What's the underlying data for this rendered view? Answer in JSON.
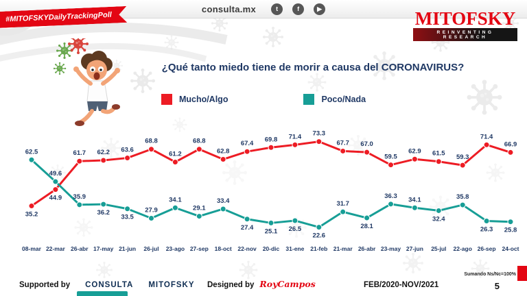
{
  "topbar": {
    "site": "consulta.mx",
    "social": [
      {
        "name": "twitter",
        "glyph": "t"
      },
      {
        "name": "facebook",
        "glyph": "f"
      },
      {
        "name": "youtube",
        "glyph": "▶"
      }
    ]
  },
  "ribbon": {
    "label": "#MITOFSKYDailyTrackingPoll"
  },
  "logo": {
    "name": "MITOFSKY",
    "tagline": "REINVENTING RESEARCH"
  },
  "title": {
    "question": "¿Qué tanto miedo tiene de morir a causa del ",
    "emphasis": "CORONAVIRUS?"
  },
  "chart_data": {
    "type": "line",
    "categories": [
      "08-mar",
      "22-mar",
      "26-abr",
      "17-may",
      "21-jun",
      "26-jul",
      "23-ago",
      "27-sep",
      "18-oct",
      "22-nov",
      "20-dic",
      "31-ene",
      "21-feb",
      "21-mar",
      "26-abr",
      "23-may",
      "27-jun",
      "25-jul",
      "22-ago",
      "26-sep",
      "24-oct"
    ],
    "series": [
      {
        "name": "Mucho/Algo",
        "color": "#ed1c24",
        "values": [
          35.2,
          44.9,
          61.7,
          62.2,
          63.6,
          68.8,
          61.2,
          68.8,
          62.8,
          67.4,
          69.8,
          71.4,
          73.3,
          67.7,
          67.0,
          59.5,
          62.9,
          61.5,
          59.3,
          71.4,
          66.9
        ],
        "label_side": [
          "below",
          "below",
          "above",
          "above",
          "above",
          "above",
          "above",
          "above",
          "above",
          "above",
          "above",
          "above",
          "above",
          "above",
          "above",
          "above",
          "above",
          "above",
          "above",
          "above",
          "above"
        ]
      },
      {
        "name": "Poco/Nada",
        "color": "#179e96",
        "values": [
          62.5,
          49.6,
          35.9,
          36.2,
          33.5,
          27.9,
          34.1,
          29.1,
          33.4,
          27.4,
          25.1,
          26.5,
          22.6,
          31.7,
          28.1,
          36.3,
          34.1,
          32.4,
          35.8,
          26.3,
          25.8
        ],
        "label_side": [
          "above",
          "above",
          "above",
          "below",
          "below",
          "above",
          "above",
          "above",
          "above",
          "below",
          "below",
          "below",
          "below",
          "above",
          "below",
          "above",
          "above",
          "below",
          "above",
          "below",
          "below"
        ]
      }
    ],
    "ylim": [
      20,
      76
    ],
    "label_color": "#1f3864",
    "grid": false,
    "legend_position": "top"
  },
  "footer": {
    "supported_by": "Supported by",
    "sponsor1": "CONSULTA",
    "sponsor2": "MITOFSKY",
    "designed_by": "Designed by",
    "designer": "RoyCampos",
    "period": "FEB/2020-NOV/2021",
    "note": "Sumando Ns/Nc=100%",
    "page": "5"
  }
}
